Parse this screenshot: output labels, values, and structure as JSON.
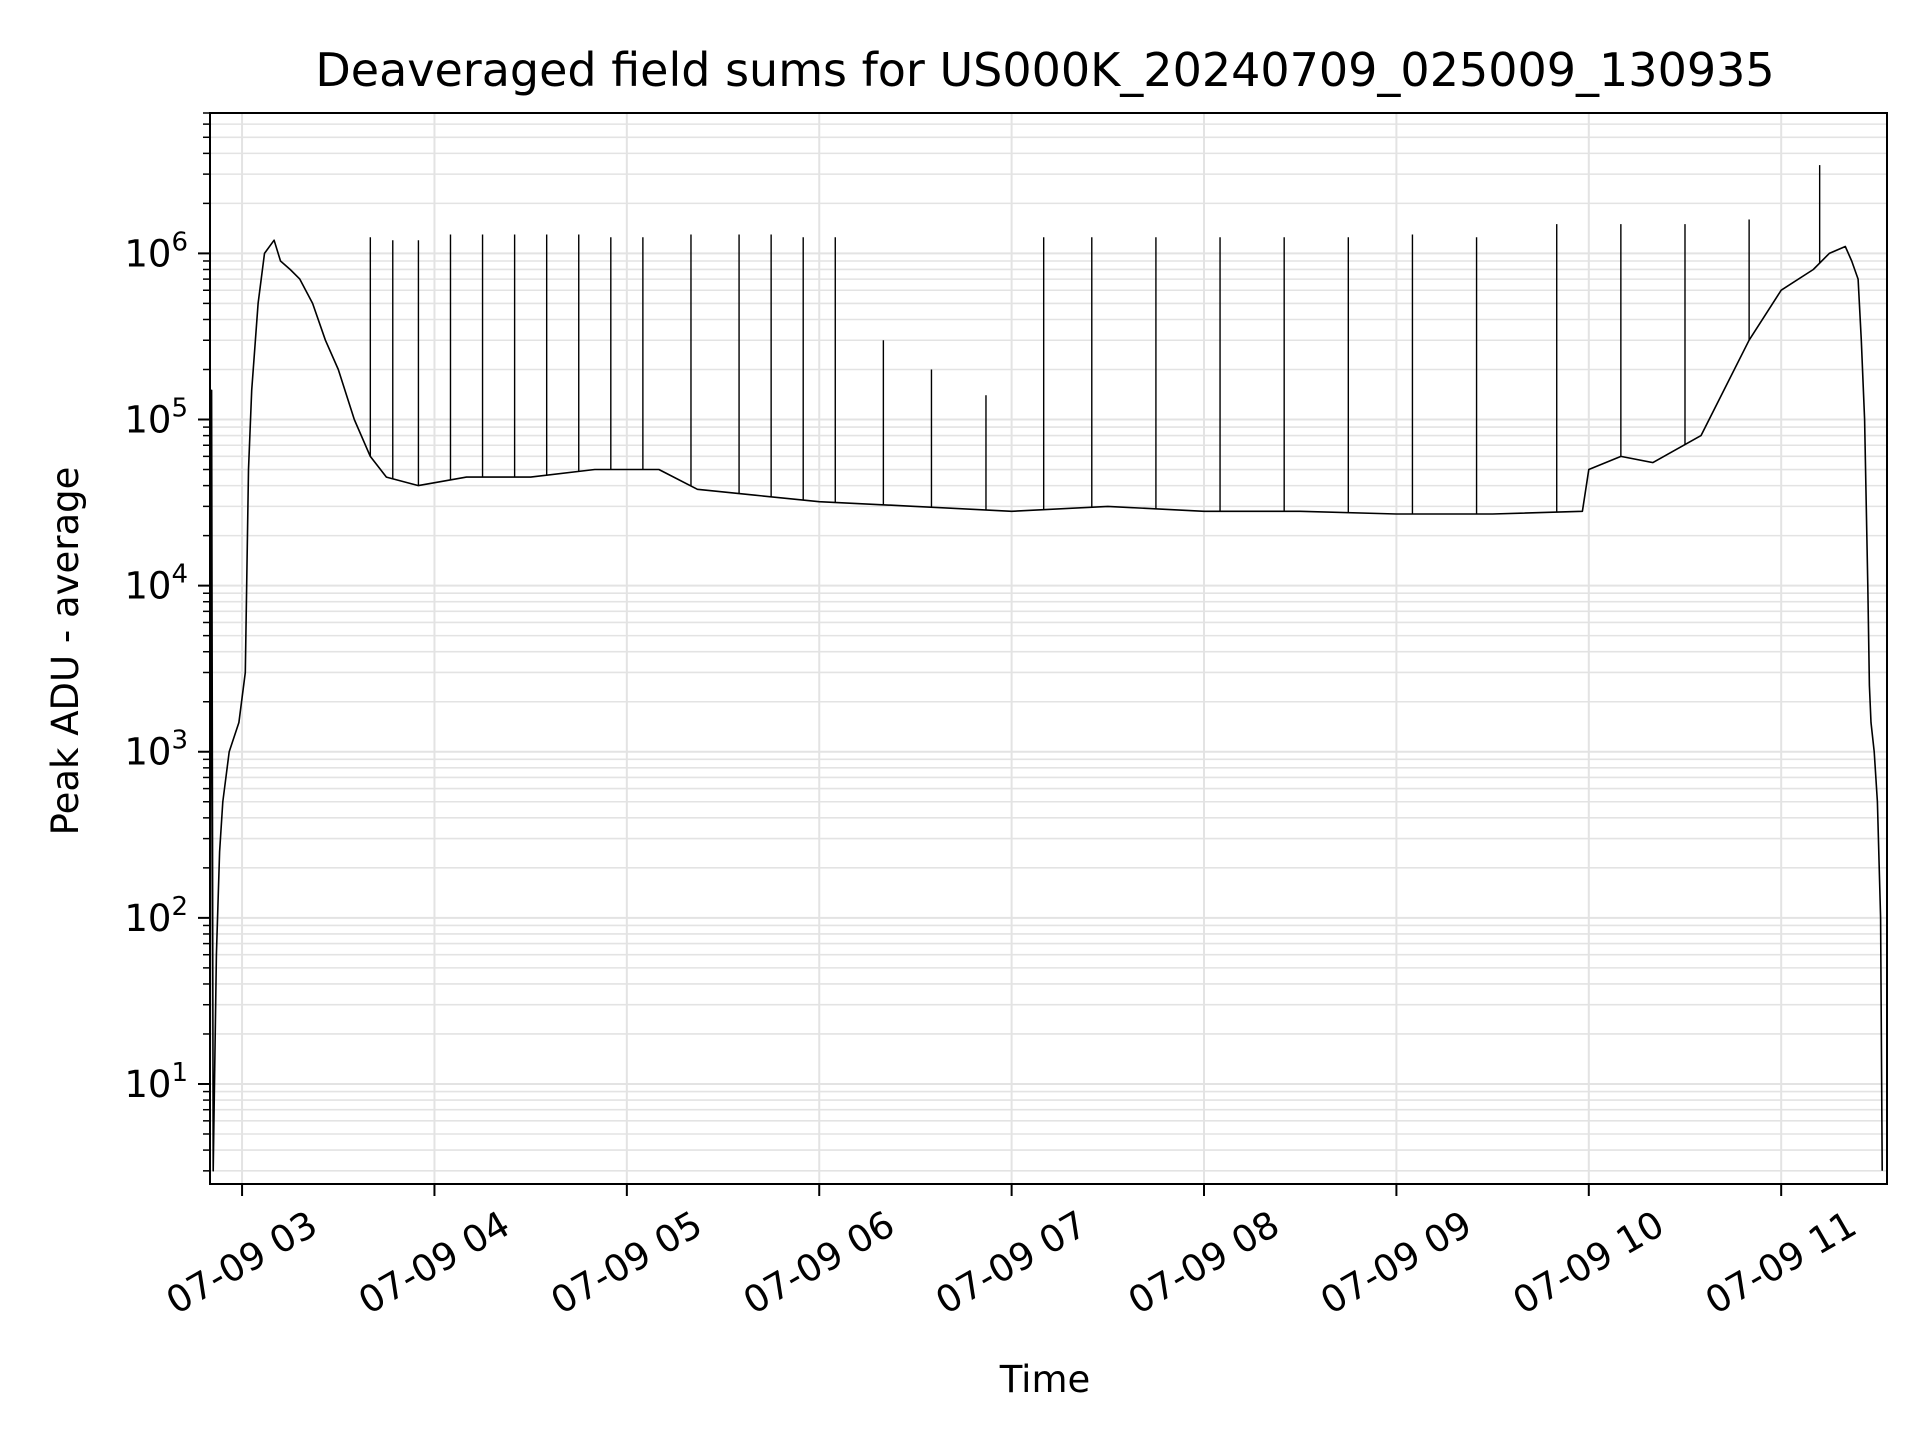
{
  "chart_data": {
    "type": "line",
    "title": "Deaveraged field sums for US000K_20240709_025009_130935",
    "xlabel": "Time",
    "ylabel": "Peak ADU - average",
    "yscale": "log",
    "ylim": [
      2.5,
      7000000
    ],
    "xlim": [
      "2024-07-09T02:50:00",
      "2024-07-09T11:33:00"
    ],
    "grid": true,
    "x_ticks": [
      {
        "t": "2024-07-09T03:00:00",
        "label": "07-09 03"
      },
      {
        "t": "2024-07-09T04:00:00",
        "label": "07-09 04"
      },
      {
        "t": "2024-07-09T05:00:00",
        "label": "07-09 05"
      },
      {
        "t": "2024-07-09T06:00:00",
        "label": "07-09 06"
      },
      {
        "t": "2024-07-09T07:00:00",
        "label": "07-09 07"
      },
      {
        "t": "2024-07-09T08:00:00",
        "label": "07-09 08"
      },
      {
        "t": "2024-07-09T09:00:00",
        "label": "07-09 09"
      },
      {
        "t": "2024-07-09T10:00:00",
        "label": "07-09 10"
      },
      {
        "t": "2024-07-09T11:00:00",
        "label": "07-09 11"
      }
    ],
    "y_ticks": [
      {
        "value": 10,
        "base": "10",
        "exp": "1"
      },
      {
        "value": 100,
        "base": "10",
        "exp": "2"
      },
      {
        "value": 1000,
        "base": "10",
        "exp": "3"
      },
      {
        "value": 10000,
        "base": "10",
        "exp": "4"
      },
      {
        "value": 100000,
        "base": "10",
        "exp": "5"
      },
      {
        "value": 1000000,
        "base": "10",
        "exp": "6"
      }
    ],
    "line_color": "#000000",
    "grid_color": "#e3e3e3",
    "series": [
      {
        "points": [
          [
            "2024-07-09T02:50:00",
            3
          ],
          [
            "2024-07-09T02:50:30",
            150000
          ],
          [
            "2024-07-09T02:51:00",
            3
          ],
          [
            "2024-07-09T02:52:00",
            60
          ],
          [
            "2024-07-09T02:53:00",
            250
          ],
          [
            "2024-07-09T02:54:00",
            500
          ],
          [
            "2024-07-09T02:56:00",
            1000
          ],
          [
            "2024-07-09T02:59:00",
            1500
          ],
          [
            "2024-07-09T03:01:00",
            3000
          ],
          [
            "2024-07-09T03:02:00",
            50000
          ],
          [
            "2024-07-09T03:03:00",
            150000
          ],
          [
            "2024-07-09T03:05:00",
            500000
          ],
          [
            "2024-07-09T03:07:00",
            1000000
          ],
          [
            "2024-07-09T03:10:00",
            1200000
          ],
          [
            "2024-07-09T03:12:00",
            900000
          ],
          [
            "2024-07-09T03:15:00",
            800000
          ],
          [
            "2024-07-09T03:18:00",
            700000
          ],
          [
            "2024-07-09T03:22:00",
            500000
          ],
          [
            "2024-07-09T03:26:00",
            300000
          ],
          [
            "2024-07-09T03:30:00",
            200000
          ],
          [
            "2024-07-09T03:35:00",
            100000
          ],
          [
            "2024-07-09T03:40:00",
            60000
          ],
          [
            "2024-07-09T03:45:00",
            45000
          ],
          [
            "2024-07-09T03:55:00",
            40000
          ],
          [
            "2024-07-09T04:10:00",
            45000
          ],
          [
            "2024-07-09T04:30:00",
            45000
          ],
          [
            "2024-07-09T04:50:00",
            50000
          ],
          [
            "2024-07-09T05:10:00",
            50000
          ],
          [
            "2024-07-09T05:22:00",
            38000
          ],
          [
            "2024-07-09T05:40:00",
            35000
          ],
          [
            "2024-07-09T06:00:00",
            32000
          ],
          [
            "2024-07-09T06:30:00",
            30000
          ],
          [
            "2024-07-09T07:00:00",
            28000
          ],
          [
            "2024-07-09T07:30:00",
            30000
          ],
          [
            "2024-07-09T08:00:00",
            28000
          ],
          [
            "2024-07-09T08:30:00",
            28000
          ],
          [
            "2024-07-09T09:00:00",
            27000
          ],
          [
            "2024-07-09T09:30:00",
            27000
          ],
          [
            "2024-07-09T09:58:00",
            28000
          ],
          [
            "2024-07-09T10:00:00",
            50000
          ],
          [
            "2024-07-09T10:10:00",
            60000
          ],
          [
            "2024-07-09T10:20:00",
            55000
          ],
          [
            "2024-07-09T10:35:00",
            80000
          ],
          [
            "2024-07-09T10:50:00",
            300000
          ],
          [
            "2024-07-09T11:00:00",
            600000
          ],
          [
            "2024-07-09T11:10:00",
            800000
          ],
          [
            "2024-07-09T11:15:00",
            1000000
          ],
          [
            "2024-07-09T11:20:00",
            1100000
          ],
          [
            "2024-07-09T11:22:00",
            900000
          ],
          [
            "2024-07-09T11:24:00",
            700000
          ],
          [
            "2024-07-09T11:25:00",
            300000
          ],
          [
            "2024-07-09T11:26:00",
            100000
          ],
          [
            "2024-07-09T11:27:00",
            10000
          ],
          [
            "2024-07-09T11:27:30",
            2500
          ],
          [
            "2024-07-09T11:28:00",
            1500
          ],
          [
            "2024-07-09T11:29:00",
            1000
          ],
          [
            "2024-07-09T11:30:00",
            500
          ],
          [
            "2024-07-09T11:31:00",
            100
          ],
          [
            "2024-07-09T11:31:30",
            3
          ]
        ],
        "spikes": [
          [
            "2024-07-09T03:40:00",
            1250000
          ],
          [
            "2024-07-09T03:47:00",
            1200000
          ],
          [
            "2024-07-09T03:55:00",
            1200000
          ],
          [
            "2024-07-09T04:05:00",
            1300000
          ],
          [
            "2024-07-09T04:15:00",
            1300000
          ],
          [
            "2024-07-09T04:25:00",
            1300000
          ],
          [
            "2024-07-09T04:35:00",
            1300000
          ],
          [
            "2024-07-09T04:45:00",
            1300000
          ],
          [
            "2024-07-09T04:55:00",
            1250000
          ],
          [
            "2024-07-09T05:05:00",
            1250000
          ],
          [
            "2024-07-09T05:20:00",
            1300000
          ],
          [
            "2024-07-09T05:35:00",
            1300000
          ],
          [
            "2024-07-09T05:45:00",
            1300000
          ],
          [
            "2024-07-09T05:55:00",
            1250000
          ],
          [
            "2024-07-09T06:05:00",
            1250000
          ],
          [
            "2024-07-09T06:20:00",
            300000
          ],
          [
            "2024-07-09T06:35:00",
            200000
          ],
          [
            "2024-07-09T06:52:00",
            140000
          ],
          [
            "2024-07-09T07:10:00",
            1250000
          ],
          [
            "2024-07-09T07:25:00",
            1250000
          ],
          [
            "2024-07-09T07:45:00",
            1250000
          ],
          [
            "2024-07-09T08:05:00",
            1250000
          ],
          [
            "2024-07-09T08:25:00",
            1250000
          ],
          [
            "2024-07-09T08:45:00",
            1250000
          ],
          [
            "2024-07-09T09:05:00",
            1300000
          ],
          [
            "2024-07-09T09:25:00",
            1250000
          ],
          [
            "2024-07-09T09:50:00",
            1500000
          ],
          [
            "2024-07-09T10:10:00",
            1500000
          ],
          [
            "2024-07-09T10:30:00",
            1500000
          ],
          [
            "2024-07-09T10:50:00",
            1600000
          ],
          [
            "2024-07-09T11:12:00",
            3400000
          ]
        ]
      }
    ]
  }
}
